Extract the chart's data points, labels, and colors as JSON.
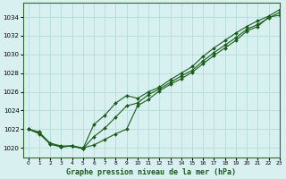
{
  "title": "Graphe pression niveau de la mer (hPa)",
  "bg_color": "#d8f0f0",
  "grid_color": "#b8dede",
  "line_color": "#1a5c1a",
  "marker_color": "#1a5c1a",
  "xlim": [
    -0.5,
    23
  ],
  "ylim": [
    1019.0,
    1035.5
  ],
  "yticks": [
    1020,
    1022,
    1024,
    1026,
    1028,
    1030,
    1032,
    1034
  ],
  "xticks": [
    0,
    1,
    2,
    3,
    4,
    5,
    6,
    7,
    8,
    9,
    10,
    11,
    12,
    13,
    14,
    15,
    16,
    17,
    18,
    19,
    20,
    21,
    22,
    23
  ],
  "line1_x": [
    0,
    1,
    2,
    3,
    4,
    5,
    6,
    7,
    8,
    9,
    10,
    11,
    12,
    13,
    14,
    15,
    16,
    17,
    18,
    19,
    20,
    21,
    22,
    23
  ],
  "line1_y": [
    1022.0,
    1021.6,
    1020.5,
    1020.2,
    1020.2,
    1020.0,
    1020.3,
    1020.9,
    1021.5,
    1022.0,
    1024.5,
    1025.2,
    1026.1,
    1026.8,
    1027.4,
    1028.1,
    1029.0,
    1029.9,
    1030.7,
    1031.5,
    1032.5,
    1033.0,
    1034.0,
    1034.2
  ],
  "line2_x": [
    0,
    1,
    2,
    3,
    4,
    5,
    6,
    7,
    8,
    9,
    10,
    11,
    12,
    13,
    14,
    15,
    16,
    17,
    18,
    19,
    20,
    21,
    22,
    23
  ],
  "line2_y": [
    1022.0,
    1021.7,
    1020.4,
    1020.1,
    1020.2,
    1019.9,
    1021.2,
    1022.1,
    1023.3,
    1024.5,
    1024.8,
    1025.7,
    1026.3,
    1027.0,
    1027.7,
    1028.3,
    1029.3,
    1030.2,
    1031.0,
    1031.8,
    1032.7,
    1033.2,
    1033.9,
    1034.5
  ],
  "line3_x": [
    0,
    1,
    2,
    3,
    4,
    5,
    6,
    7,
    8,
    9,
    10,
    11,
    12,
    13,
    14,
    15,
    16,
    17,
    18,
    19,
    20,
    21,
    22,
    23
  ],
  "line3_y": [
    1022.0,
    1021.5,
    1020.4,
    1020.1,
    1020.2,
    1019.9,
    1022.5,
    1023.5,
    1024.8,
    1025.6,
    1025.3,
    1026.0,
    1026.5,
    1027.3,
    1028.0,
    1028.7,
    1029.8,
    1030.7,
    1031.5,
    1032.3,
    1033.0,
    1033.6,
    1034.1,
    1034.8
  ]
}
